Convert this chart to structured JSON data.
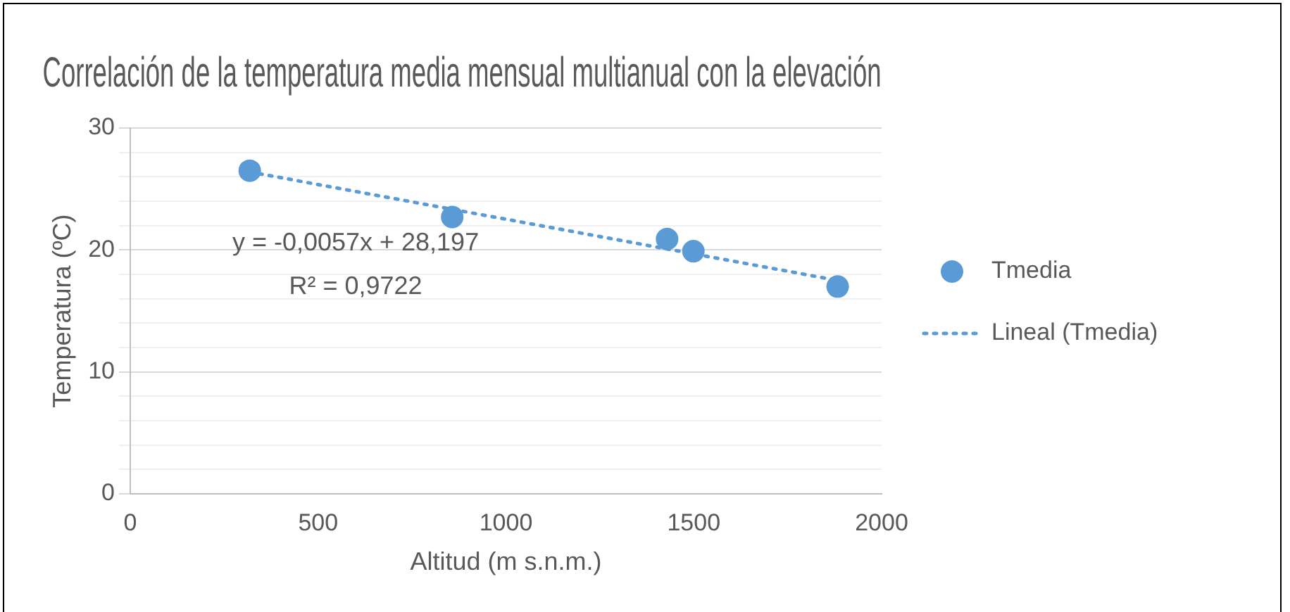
{
  "chart_data": {
    "type": "scatter",
    "title": "Correlación de la temperatura media mensual multianual con la elevación",
    "xlabel": "Altitud (m s.n.m.)",
    "ylabel": "Temperatura (ºC)",
    "x": [
      318,
      857,
      1429,
      1499,
      1883
    ],
    "series": [
      {
        "name": "Tmedia",
        "color": "#5b9bd5",
        "values": [
          26.5,
          22.7,
          20.9,
          19.9,
          17.0
        ],
        "marker": "circle"
      },
      {
        "name": "Lineal (Tmedia)",
        "type": "line",
        "color": "#5b9bd5",
        "x": [
          318,
          1883
        ],
        "values": [
          26.4,
          17.5
        ],
        "marker": "none",
        "line_style": "dotted"
      }
    ],
    "xlim": [
      0,
      2000
    ],
    "xticks": [
      0,
      500,
      1000,
      1500,
      2000
    ],
    "ylim": [
      0,
      30
    ],
    "yticks": [
      0,
      {
        "value": 2,
        "label": null
      },
      {
        "value": 4,
        "label": null
      },
      {
        "value": 6,
        "label": null
      },
      {
        "value": 8,
        "label": null
      },
      10,
      {
        "value": 12,
        "label": null
      },
      {
        "value": 14,
        "label": null
      },
      {
        "value": 16,
        "label": null
      },
      {
        "value": 18,
        "label": null
      },
      20,
      {
        "value": 22,
        "label": null
      },
      {
        "value": 24,
        "label": null
      },
      {
        "value": 26,
        "label": null
      },
      {
        "value": 28,
        "label": null
      },
      30
    ],
    "grid": "y",
    "legend": "right",
    "annotations": [
      "y = -0,0057x + 28,197",
      "R² = 0,9722"
    ]
  }
}
